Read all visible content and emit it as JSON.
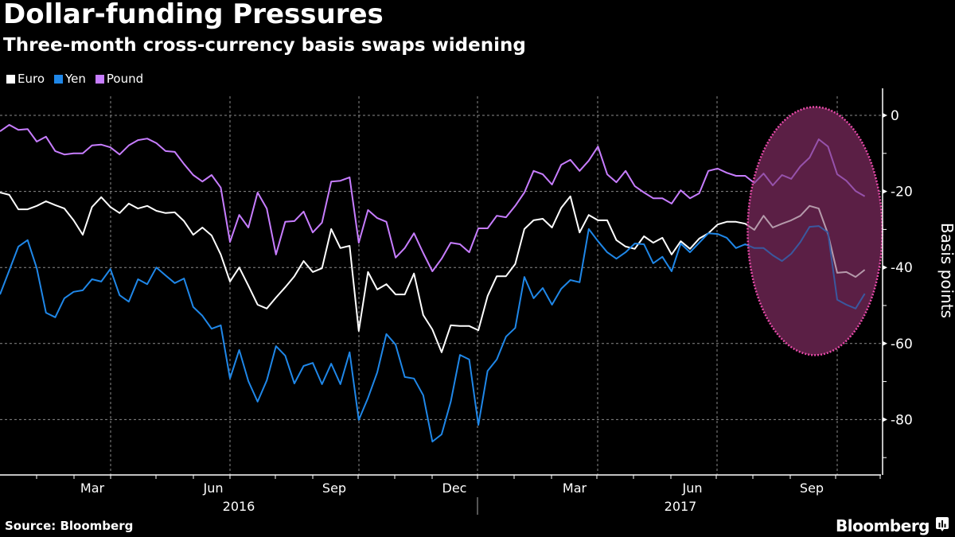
{
  "header": {
    "title": "Dollar-funding Pressures",
    "subtitle": "Three-month cross-currency basis swaps widening"
  },
  "footer": {
    "source": "Source: Bloomberg",
    "brand": "Bloomberg",
    "brand_icon": "bloomberg-chart-icon"
  },
  "chart_data": {
    "type": "line",
    "title": "Dollar-funding Pressures",
    "subtitle": "Three-month cross-currency basis swaps widening",
    "xlabel": "",
    "ylabel": "Basis points",
    "x_frequency": "weekly",
    "x": [
      1,
      2,
      3,
      4,
      5,
      6,
      7,
      8,
      9,
      10,
      11,
      12,
      13,
      14,
      15,
      16,
      17,
      18,
      19,
      20,
      21,
      22,
      23,
      24,
      25,
      26,
      27,
      28,
      29,
      30,
      31,
      32,
      33,
      34,
      35,
      36,
      37,
      38,
      39,
      40,
      41,
      42,
      43,
      44,
      45,
      46,
      47,
      48,
      49,
      50,
      51,
      52,
      53,
      54,
      55,
      56,
      57,
      58,
      59,
      60,
      61,
      62,
      63,
      64,
      65,
      66,
      67,
      68,
      69,
      70,
      71,
      72,
      73,
      74,
      75,
      76,
      77,
      78,
      79,
      80,
      81,
      82,
      83,
      84,
      85,
      86,
      87,
      88,
      89,
      90,
      91,
      92,
      93,
      94,
      95
    ],
    "ylim": [
      -92,
      7
    ],
    "yticks": [
      "0",
      "-20",
      "-40",
      "-60",
      "-80"
    ],
    "ytick_values": [
      0,
      -20,
      -40,
      -60,
      -80
    ],
    "xtick_months": [
      "Mar",
      "Jun",
      "Sep",
      "Dec",
      "Mar",
      "Jun",
      "Sep"
    ],
    "xtick_years": [
      "2016",
      "2017"
    ],
    "grid": true,
    "legend_position": "top-left",
    "series": [
      {
        "name": "Euro",
        "color": "#ffffff",
        "values": [
          -20.3,
          -20.9,
          -24.7,
          -24.7,
          -23.8,
          -22.6,
          -23.6,
          -24.5,
          -27.6,
          -31.4,
          -24.1,
          -21.5,
          -24.1,
          -25.7,
          -23.2,
          -24.5,
          -23.8,
          -25.1,
          -25.7,
          -25.5,
          -27.8,
          -31.4,
          -29.5,
          -31.6,
          -36.6,
          -43.7,
          -40.0,
          -44.8,
          -49.8,
          -50.8,
          -47.9,
          -45.2,
          -42.3,
          -38.3,
          -41.2,
          -40.2,
          -29.9,
          -34.9,
          -34.3,
          -56.7,
          -41.2,
          -45.8,
          -44.4,
          -47.1,
          -47.1,
          -41.6,
          -52.5,
          -56.3,
          -62.3,
          -55.2,
          -55.4,
          -55.4,
          -56.5,
          -47.5,
          -42.3,
          -42.3,
          -39.1,
          -29.9,
          -27.6,
          -27.2,
          -29.5,
          -24.3,
          -21.3,
          -30.8,
          -26.2,
          -27.6,
          -27.6,
          -32.8,
          -34.5,
          -35.1,
          -31.8,
          -33.5,
          -32.2,
          -36.6,
          -33.1,
          -35.1,
          -32.4,
          -31.0,
          -28.7,
          -28.0,
          -28.0,
          -28.5,
          -30.1,
          -26.4,
          -29.5,
          -28.5,
          -27.6,
          -26.4,
          -23.8,
          -24.5,
          -31.2,
          -41.4,
          -41.2,
          -42.5,
          -40.6
        ]
      },
      {
        "name": "Yen",
        "color": "#1f87e8",
        "values": [
          -47.1,
          -40.8,
          -34.5,
          -32.8,
          -40.2,
          -51.9,
          -53.1,
          -48.1,
          -46.4,
          -46.0,
          -43.1,
          -43.7,
          -40.4,
          -47.3,
          -49.0,
          -43.1,
          -44.4,
          -40.0,
          -42.1,
          -44.1,
          -42.9,
          -50.4,
          -52.7,
          -56.1,
          -55.2,
          -69.2,
          -61.7,
          -69.9,
          -75.3,
          -69.7,
          -60.7,
          -63.2,
          -70.5,
          -65.9,
          -65.1,
          -70.7,
          -65.3,
          -70.7,
          -62.3,
          -80.1,
          -74.3,
          -67.6,
          -57.5,
          -60.3,
          -68.8,
          -69.2,
          -73.6,
          -85.8,
          -83.9,
          -75.3,
          -63.0,
          -64.2,
          -81.4,
          -67.2,
          -64.2,
          -58.2,
          -55.9,
          -42.5,
          -48.1,
          -45.4,
          -49.8,
          -45.6,
          -43.3,
          -43.9,
          -29.9,
          -33.1,
          -36.0,
          -37.7,
          -36.0,
          -33.7,
          -33.9,
          -38.9,
          -37.2,
          -41.0,
          -33.7,
          -36.0,
          -33.5,
          -31.0,
          -31.2,
          -32.2,
          -34.9,
          -33.9,
          -34.9,
          -34.9,
          -36.8,
          -38.3,
          -36.4,
          -33.3,
          -29.3,
          -29.1,
          -30.8,
          -48.5,
          -49.8,
          -50.8,
          -46.9
        ]
      },
      {
        "name": "Pound",
        "color": "#c77dff",
        "values": [
          -4.2,
          -2.5,
          -3.8,
          -3.6,
          -6.9,
          -5.6,
          -9.4,
          -10.3,
          -10.0,
          -10.0,
          -7.9,
          -7.7,
          -8.4,
          -10.3,
          -7.9,
          -6.5,
          -6.1,
          -7.3,
          -9.4,
          -9.6,
          -12.8,
          -15.7,
          -17.4,
          -15.7,
          -19.0,
          -33.3,
          -26.2,
          -29.5,
          -20.3,
          -24.5,
          -36.6,
          -28.0,
          -27.8,
          -25.3,
          -30.8,
          -28.2,
          -17.4,
          -17.2,
          -16.3,
          -33.5,
          -24.9,
          -27.0,
          -28.0,
          -37.4,
          -34.9,
          -31.0,
          -36.2,
          -41.0,
          -37.7,
          -33.5,
          -33.9,
          -36.0,
          -29.7,
          -29.7,
          -26.4,
          -26.8,
          -23.8,
          -20.3,
          -14.6,
          -15.5,
          -18.2,
          -13.0,
          -11.7,
          -14.6,
          -11.9,
          -8.2,
          -15.5,
          -17.6,
          -14.6,
          -18.6,
          -20.3,
          -21.8,
          -21.8,
          -23.2,
          -19.7,
          -21.8,
          -20.5,
          -14.6,
          -14.0,
          -15.1,
          -15.9,
          -15.9,
          -17.8,
          -15.3,
          -18.4,
          -15.7,
          -16.7,
          -13.4,
          -11.1,
          -6.3,
          -8.2,
          -15.5,
          -17.2,
          -19.9,
          -21.3
        ]
      }
    ],
    "annotations": [
      {
        "type": "highlight-ellipse",
        "fill": "#5c1f45",
        "stroke": "#e64aa8",
        "x_from": 84,
        "x_to": 95,
        "y_from": 2,
        "y_to": -62
      }
    ]
  }
}
